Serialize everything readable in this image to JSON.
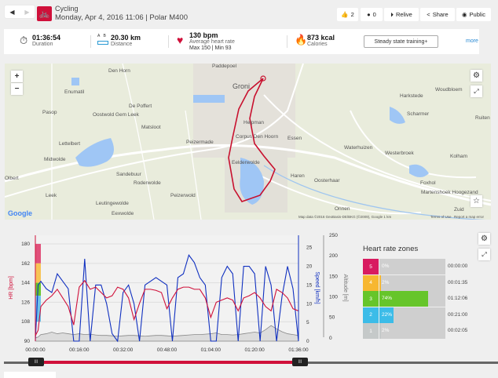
{
  "header": {
    "sport": "Cycling",
    "subtitle": "Monday, Apr 4, 2016 11:06 | Polar M400",
    "buttons": {
      "likes": "2",
      "comments": "0",
      "relive": "Relive",
      "share": "Share",
      "public": "Public"
    }
  },
  "stats": {
    "duration": {
      "value": "01:36:54",
      "label": "Duration"
    },
    "distance": {
      "value": "20.30 km",
      "label": "Distance",
      "a": "A",
      "b": "B"
    },
    "heart": {
      "value": "130 bpm",
      "label": "Average heart rate",
      "minmax": "Max 150  |  Min 93"
    },
    "calories": {
      "value": "873 kcal",
      "label": "Calories"
    },
    "training_button": "Steady state training+",
    "more": "more"
  },
  "map": {
    "labels": [
      "Den Horn",
      "Enumatil",
      "Pasop",
      "De Poffert",
      "Oostwold Gem Leek",
      "Matsloot",
      "Lettelbert",
      "Peizermade",
      "Midwolde",
      "Eelderwolde",
      "Sandebuur",
      "Roderwolde",
      "Leek",
      "Peizerwold",
      "Leutingewolde",
      "Eexwolde",
      "Corpus Den Hoorn",
      "Groni",
      "Harkstede",
      "Woudbloem",
      "Scharmer",
      "Ruiten",
      "Waterhuizen",
      "Westerbroek",
      "Kolham",
      "Essen",
      "Haren",
      "Oosterhaar",
      "Foxhol",
      "Martenshoek Hoogezand",
      "Onnen",
      "Helpman",
      "Zuid",
      "Paddepoel",
      "Olbert"
    ],
    "attribution": "Map data ©2016 GeoBasis-DE/BKG (©2009), Google   1 km",
    "terms": "Terms of Use",
    "report": "Report a map error",
    "google": "Google",
    "zoom_in": "+",
    "zoom_out": "−"
  },
  "zones": {
    "title": "Heart rate zones",
    "rows": [
      {
        "zone": "5",
        "pct": "0%",
        "value": 0,
        "time": "00:00:00",
        "color": "#d81b60"
      },
      {
        "zone": "4",
        "pct": "2%",
        "value": 2,
        "time": "00:01:35",
        "color": "#f7b731"
      },
      {
        "zone": "3",
        "pct": "74%",
        "value": 74,
        "time": "01:12:06",
        "color": "#66c52a"
      },
      {
        "zone": "2",
        "pct": "22%",
        "value": 22,
        "time": "00:21:00",
        "color": "#3cbce8"
      },
      {
        "zone": "1",
        "pct": "2%",
        "value": 2,
        "time": "00:02:05",
        "color": "#c5c9c9"
      }
    ]
  },
  "chart_data": {
    "type": "line",
    "x_minutes": [
      0,
      1,
      2,
      4,
      6,
      8,
      10,
      12,
      14,
      16,
      18,
      20,
      22,
      24,
      26,
      28,
      30,
      32,
      34,
      36,
      38,
      40,
      42,
      44,
      46,
      48,
      50,
      52,
      54,
      56,
      58,
      60,
      62,
      64,
      66,
      68,
      70,
      72,
      74,
      76,
      78,
      80,
      82,
      84,
      86,
      88,
      90,
      92,
      94,
      96
    ],
    "series": [
      {
        "name": "HR",
        "unit": "bpm",
        "color": "#d0103a",
        "values": [
          95,
          100,
          122,
          128,
          132,
          138,
          130,
          122,
          105,
          140,
          146,
          138,
          140,
          135,
          130,
          132,
          140,
          138,
          130,
          110,
          125,
          138,
          138,
          137,
          135,
          120,
          130,
          138,
          140,
          140,
          138,
          138,
          130,
          112,
          126,
          128,
          130,
          128,
          118,
          130,
          132,
          135,
          130,
          122,
          118,
          138,
          135,
          130,
          120,
          118
        ]
      },
      {
        "name": "Speed",
        "unit": "km/h",
        "color": "#1030c0",
        "values": [
          0,
          15,
          16,
          14,
          13,
          18,
          16,
          14,
          0,
          0,
          22,
          0,
          15,
          15,
          10,
          2,
          0,
          13,
          15,
          10,
          0,
          15,
          16,
          17,
          16,
          15,
          0,
          17,
          18,
          23,
          21,
          17,
          15,
          0,
          0,
          17,
          20,
          18,
          0,
          20,
          20,
          18,
          0,
          20,
          15,
          0,
          12,
          20,
          14,
          0
        ]
      },
      {
        "name": "Altitude",
        "unit": "m",
        "color": "#888888",
        "values": [
          0,
          2,
          8,
          10,
          14,
          10,
          12,
          10,
          8,
          10,
          8,
          9,
          7,
          6,
          6,
          5,
          4,
          5,
          6,
          6,
          5,
          4,
          5,
          6,
          6,
          5,
          4,
          5,
          6,
          7,
          8,
          8,
          9,
          10,
          12,
          8,
          8,
          7,
          8,
          10,
          12,
          14,
          12,
          20,
          30,
          22,
          15,
          10,
          8,
          6
        ]
      }
    ],
    "hr_axis": {
      "label": "HR [bpm]",
      "ticks": [
        "180",
        "162",
        "144",
        "126",
        "108",
        "90"
      ],
      "range": [
        90,
        188
      ]
    },
    "speed_axis": {
      "label": "Speed [km/h]",
      "ticks": [
        "25",
        "20",
        "15",
        "10",
        "5",
        "0"
      ],
      "range": [
        0,
        28.3
      ]
    },
    "alt_axis": {
      "label": "Altitude [m]",
      "ticks": [
        "250",
        "200",
        "150",
        "100",
        "50",
        "0"
      ],
      "range": [
        -8,
        250
      ]
    },
    "x_ticks": [
      "00:00:00",
      "00:16:00",
      "00:32:00",
      "00:48:00",
      "01:04:00",
      "01:20:00",
      "01:36:00"
    ],
    "x_range": [
      0,
      96
    ]
  },
  "slider": {
    "handle": "III"
  }
}
